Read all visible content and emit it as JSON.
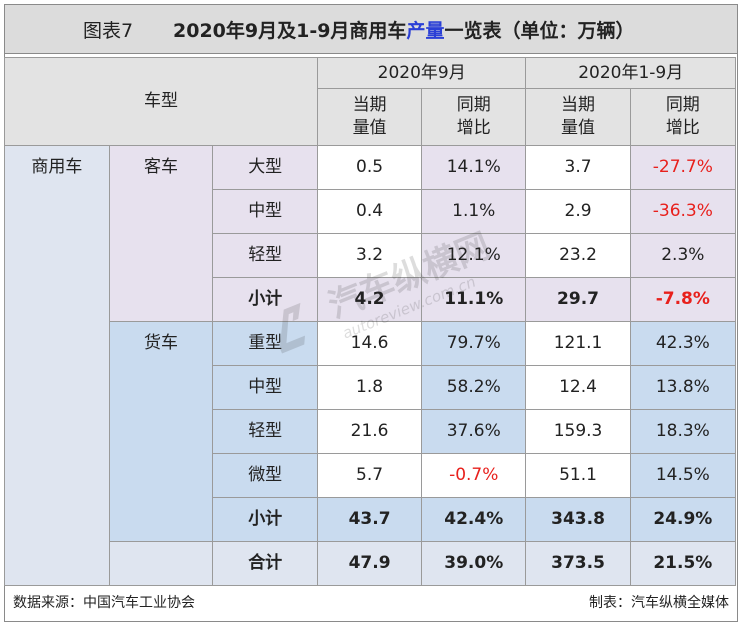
{
  "title": {
    "figure": "图表7",
    "text_before": "2020年9月及1-9月商用车",
    "highlight": "产量",
    "text_after": "一览表（单位：万辆）"
  },
  "header": {
    "vehicle_type": "车型",
    "period_sep": "2020年9月",
    "period_ytd": "2020年1-9月",
    "current_l1": "当期",
    "current_l2": "量值",
    "yoy_l1": "同期",
    "yoy_l2": "增比"
  },
  "groups": {
    "commercial": "商用车",
    "bus": "客车",
    "truck": "货车"
  },
  "rows": {
    "bus_large": {
      "label": "大型",
      "sep_val": "0.5",
      "sep_yoy": "14.1%",
      "ytd_val": "3.7",
      "ytd_yoy": "-27.7%"
    },
    "bus_medium": {
      "label": "中型",
      "sep_val": "0.4",
      "sep_yoy": "1.1%",
      "ytd_val": "2.9",
      "ytd_yoy": "-36.3%"
    },
    "bus_light": {
      "label": "轻型",
      "sep_val": "3.2",
      "sep_yoy": "12.1%",
      "ytd_val": "23.2",
      "ytd_yoy": "2.3%"
    },
    "bus_sub": {
      "label": "小计",
      "sep_val": "4.2",
      "sep_yoy": "11.1%",
      "ytd_val": "29.7",
      "ytd_yoy": "-7.8%"
    },
    "truck_heavy": {
      "label": "重型",
      "sep_val": "14.6",
      "sep_yoy": "79.7%",
      "ytd_val": "121.1",
      "ytd_yoy": "42.3%"
    },
    "truck_medium": {
      "label": "中型",
      "sep_val": "1.8",
      "sep_yoy": "58.2%",
      "ytd_val": "12.4",
      "ytd_yoy": "13.8%"
    },
    "truck_light": {
      "label": "轻型",
      "sep_val": "21.6",
      "sep_yoy": "37.6%",
      "ytd_val": "159.3",
      "ytd_yoy": "18.3%"
    },
    "truck_mini": {
      "label": "微型",
      "sep_val": "5.7",
      "sep_yoy": "-0.7%",
      "ytd_val": "51.1",
      "ytd_yoy": "14.5%"
    },
    "truck_sub": {
      "label": "小计",
      "sep_val": "43.7",
      "sep_yoy": "42.4%",
      "ytd_val": "343.8",
      "ytd_yoy": "24.9%"
    },
    "total": {
      "label": "合计",
      "sep_val": "47.9",
      "sep_yoy": "39.0%",
      "ytd_val": "373.5",
      "ytd_yoy": "21.5%"
    }
  },
  "footer": {
    "source": "数据来源：中国汽车工业协会",
    "maker": "制表：汽车纵横全媒体"
  },
  "watermark": {
    "text": "汽车纵横网",
    "url": "autoreview.com.cn"
  },
  "colors": {
    "header_bg": "#e3e3e3",
    "bus_bg": "#e7e1ee",
    "truck_bg": "#c9dbef",
    "negative": "#e8201c",
    "highlight": "#2a3fd6"
  }
}
